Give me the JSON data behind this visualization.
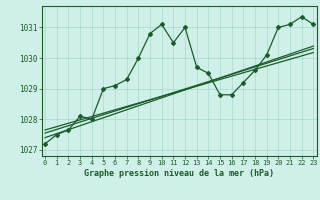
{
  "xlabel": "Graphe pression niveau de la mer (hPa)",
  "background_color": "#cff0e8",
  "line_color": "#1a5c2a",
  "grid_color": "#a8d8cc",
  "x_values": [
    0,
    1,
    2,
    3,
    4,
    5,
    6,
    7,
    8,
    9,
    10,
    11,
    12,
    13,
    14,
    15,
    16,
    17,
    18,
    19,
    20,
    21,
    22,
    23
  ],
  "y_main": [
    1027.2,
    1027.5,
    1027.65,
    1028.1,
    1028.0,
    1029.0,
    1029.1,
    1029.3,
    1030.0,
    1030.8,
    1031.1,
    1030.5,
    1031.0,
    1029.7,
    1029.5,
    1028.8,
    1028.8,
    1029.2,
    1029.6,
    1030.1,
    1031.0,
    1031.1,
    1031.35,
    1031.1
  ],
  "y_trend1": [
    1027.4,
    1027.53,
    1027.66,
    1027.79,
    1027.92,
    1028.05,
    1028.18,
    1028.31,
    1028.44,
    1028.57,
    1028.7,
    1028.83,
    1028.96,
    1029.09,
    1029.22,
    1029.35,
    1029.48,
    1029.61,
    1029.74,
    1029.87,
    1030.0,
    1030.13,
    1030.26,
    1030.39
  ],
  "y_trend2": [
    1027.55,
    1027.67,
    1027.79,
    1027.91,
    1028.03,
    1028.15,
    1028.27,
    1028.39,
    1028.51,
    1028.63,
    1028.75,
    1028.87,
    1028.99,
    1029.11,
    1029.23,
    1029.35,
    1029.47,
    1029.59,
    1029.71,
    1029.83,
    1029.95,
    1030.07,
    1030.19,
    1030.31
  ],
  "y_trend3": [
    1027.65,
    1027.76,
    1027.87,
    1027.98,
    1028.09,
    1028.2,
    1028.31,
    1028.42,
    1028.53,
    1028.64,
    1028.75,
    1028.86,
    1028.97,
    1029.08,
    1029.19,
    1029.3,
    1029.41,
    1029.52,
    1029.63,
    1029.74,
    1029.85,
    1029.96,
    1030.07,
    1030.18
  ],
  "ylim": [
    1026.8,
    1031.7
  ],
  "xlim": [
    -0.3,
    23.3
  ],
  "yticks": [
    1027,
    1028,
    1029,
    1030,
    1031
  ],
  "xticks": [
    0,
    1,
    2,
    3,
    4,
    5,
    6,
    7,
    8,
    9,
    10,
    11,
    12,
    13,
    14,
    15,
    16,
    17,
    18,
    19,
    20,
    21,
    22,
    23
  ]
}
